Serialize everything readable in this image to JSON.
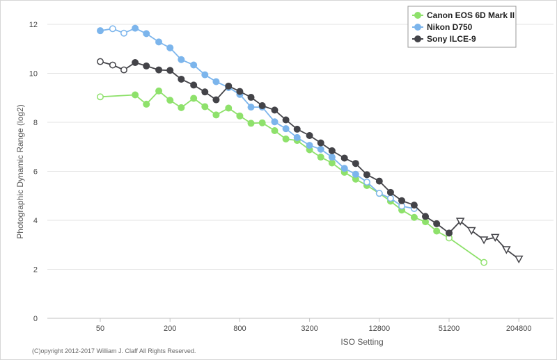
{
  "chart_data": {
    "type": "line",
    "xlabel": "ISO Setting",
    "ylabel": "Photographic Dynamic Range (log2)",
    "xscale": "log2",
    "x_ticks": [
      50,
      200,
      800,
      3200,
      12800,
      51200,
      204800
    ],
    "x_tick_labels": [
      "50",
      "200",
      "800",
      "3200",
      "12800",
      "51200",
      "204800"
    ],
    "ylim": [
      0,
      12
    ],
    "y_ticks": [
      0,
      2,
      4,
      6,
      8,
      10,
      12
    ],
    "grid": "horizontal",
    "legend_position": "top-right",
    "series": [
      {
        "name": "Canon EOS 6D Mark II",
        "color": "#8ee16b",
        "points": [
          {
            "x": 50,
            "y": 9.04,
            "m": "open"
          },
          {
            "x": 100,
            "y": 9.12,
            "m": "filled"
          },
          {
            "x": 125,
            "y": 8.74,
            "m": "filled"
          },
          {
            "x": 160,
            "y": 9.28,
            "m": "filled"
          },
          {
            "x": 200,
            "y": 8.9,
            "m": "filled"
          },
          {
            "x": 250,
            "y": 8.6,
            "m": "filled"
          },
          {
            "x": 320,
            "y": 8.98,
            "m": "filled"
          },
          {
            "x": 400,
            "y": 8.64,
            "m": "filled"
          },
          {
            "x": 500,
            "y": 8.3,
            "m": "filled"
          },
          {
            "x": 640,
            "y": 8.58,
            "m": "filled"
          },
          {
            "x": 800,
            "y": 8.26,
            "m": "filled"
          },
          {
            "x": 1000,
            "y": 7.96,
            "m": "filled"
          },
          {
            "x": 1250,
            "y": 7.98,
            "m": "filled"
          },
          {
            "x": 1600,
            "y": 7.66,
            "m": "filled"
          },
          {
            "x": 2000,
            "y": 7.32,
            "m": "filled"
          },
          {
            "x": 2500,
            "y": 7.26,
            "m": "filled"
          },
          {
            "x": 3200,
            "y": 6.88,
            "m": "filled"
          },
          {
            "x": 4000,
            "y": 6.58,
            "m": "filled"
          },
          {
            "x": 5000,
            "y": 6.34,
            "m": "filled"
          },
          {
            "x": 6400,
            "y": 5.96,
            "m": "filled"
          },
          {
            "x": 8000,
            "y": 5.68,
            "m": "filled"
          },
          {
            "x": 10000,
            "y": 5.42,
            "m": "filled"
          },
          {
            "x": 12800,
            "y": 5.1,
            "m": "open"
          },
          {
            "x": 16000,
            "y": 4.78,
            "m": "filled"
          },
          {
            "x": 20000,
            "y": 4.42,
            "m": "filled"
          },
          {
            "x": 25600,
            "y": 4.12,
            "m": "filled"
          },
          {
            "x": 32000,
            "y": 3.94,
            "m": "filled"
          },
          {
            "x": 40000,
            "y": 3.56,
            "m": "filled"
          },
          {
            "x": 51200,
            "y": 3.28,
            "m": "open"
          },
          {
            "x": 102400,
            "y": 2.28,
            "m": "open"
          }
        ]
      },
      {
        "name": "Nikon D750",
        "color": "#7cb5ec",
        "points": [
          {
            "x": 50,
            "y": 11.74,
            "m": "filled"
          },
          {
            "x": 64,
            "y": 11.82,
            "m": "open"
          },
          {
            "x": 80,
            "y": 11.64,
            "m": "open"
          },
          {
            "x": 100,
            "y": 11.84,
            "m": "filled"
          },
          {
            "x": 125,
            "y": 11.62,
            "m": "filled"
          },
          {
            "x": 160,
            "y": 11.28,
            "m": "filled"
          },
          {
            "x": 200,
            "y": 11.04,
            "m": "filled"
          },
          {
            "x": 250,
            "y": 10.56,
            "m": "filled"
          },
          {
            "x": 320,
            "y": 10.34,
            "m": "filled"
          },
          {
            "x": 400,
            "y": 9.94,
            "m": "filled"
          },
          {
            "x": 500,
            "y": 9.66,
            "m": "filled"
          },
          {
            "x": 640,
            "y": 9.42,
            "m": "filled"
          },
          {
            "x": 800,
            "y": 9.14,
            "m": "filled"
          },
          {
            "x": 1000,
            "y": 8.62,
            "m": "filled"
          },
          {
            "x": 1250,
            "y": 8.62,
            "m": "filled"
          },
          {
            "x": 1600,
            "y": 8.02,
            "m": "filled"
          },
          {
            "x": 2000,
            "y": 7.74,
            "m": "filled"
          },
          {
            "x": 2500,
            "y": 7.38,
            "m": "filled"
          },
          {
            "x": 3200,
            "y": 7.06,
            "m": "filled"
          },
          {
            "x": 4000,
            "y": 6.9,
            "m": "filled"
          },
          {
            "x": 5000,
            "y": 6.58,
            "m": "filled"
          },
          {
            "x": 6400,
            "y": 6.12,
            "m": "filled"
          },
          {
            "x": 8000,
            "y": 5.88,
            "m": "filled"
          },
          {
            "x": 10000,
            "y": 5.56,
            "m": "open"
          },
          {
            "x": 12800,
            "y": 5.1,
            "m": "open"
          },
          {
            "x": 16000,
            "y": 4.9,
            "m": "open"
          },
          {
            "x": 20000,
            "y": 4.58,
            "m": "open"
          },
          {
            "x": 25600,
            "y": 4.48,
            "m": "open"
          }
        ]
      },
      {
        "name": "Sony ILCE-9",
        "color": "#434348",
        "points": [
          {
            "x": 50,
            "y": 10.48,
            "m": "open"
          },
          {
            "x": 64,
            "y": 10.34,
            "m": "open"
          },
          {
            "x": 80,
            "y": 10.14,
            "m": "open"
          },
          {
            "x": 100,
            "y": 10.44,
            "m": "filled"
          },
          {
            "x": 125,
            "y": 10.3,
            "m": "filled"
          },
          {
            "x": 160,
            "y": 10.14,
            "m": "filled"
          },
          {
            "x": 200,
            "y": 10.12,
            "m": "filled"
          },
          {
            "x": 250,
            "y": 9.76,
            "m": "filled"
          },
          {
            "x": 320,
            "y": 9.52,
            "m": "filled"
          },
          {
            "x": 400,
            "y": 9.24,
            "m": "filled"
          },
          {
            "x": 500,
            "y": 8.92,
            "m": "filled"
          },
          {
            "x": 640,
            "y": 9.48,
            "m": "filled"
          },
          {
            "x": 800,
            "y": 9.26,
            "m": "filled"
          },
          {
            "x": 1000,
            "y": 9.02,
            "m": "filled"
          },
          {
            "x": 1250,
            "y": 8.68,
            "m": "filled"
          },
          {
            "x": 1600,
            "y": 8.5,
            "m": "filled"
          },
          {
            "x": 2000,
            "y": 8.1,
            "m": "filled"
          },
          {
            "x": 2500,
            "y": 7.72,
            "m": "filled"
          },
          {
            "x": 3200,
            "y": 7.46,
            "m": "filled"
          },
          {
            "x": 4000,
            "y": 7.16,
            "m": "filled"
          },
          {
            "x": 5000,
            "y": 6.84,
            "m": "filled"
          },
          {
            "x": 6400,
            "y": 6.54,
            "m": "filled"
          },
          {
            "x": 8000,
            "y": 6.32,
            "m": "filled"
          },
          {
            "x": 10000,
            "y": 5.86,
            "m": "filled"
          },
          {
            "x": 12800,
            "y": 5.6,
            "m": "filled"
          },
          {
            "x": 16000,
            "y": 5.14,
            "m": "filled"
          },
          {
            "x": 20000,
            "y": 4.8,
            "m": "filled"
          },
          {
            "x": 25600,
            "y": 4.62,
            "m": "filled"
          },
          {
            "x": 32000,
            "y": 4.16,
            "m": "filled"
          },
          {
            "x": 40000,
            "y": 3.86,
            "m": "filled"
          },
          {
            "x": 51200,
            "y": 3.48,
            "m": "filled"
          },
          {
            "x": 64000,
            "y": 3.96,
            "m": "tri"
          },
          {
            "x": 80000,
            "y": 3.58,
            "m": "tri"
          },
          {
            "x": 102400,
            "y": 3.2,
            "m": "tri"
          },
          {
            "x": 128000,
            "y": 3.3,
            "m": "tri"
          },
          {
            "x": 160000,
            "y": 2.8,
            "m": "tri"
          },
          {
            "x": 204800,
            "y": 2.42,
            "m": "tri"
          }
        ]
      }
    ]
  },
  "copyright": "(C)opyright 2012-2017 William J. Claff All Rights Reserved."
}
